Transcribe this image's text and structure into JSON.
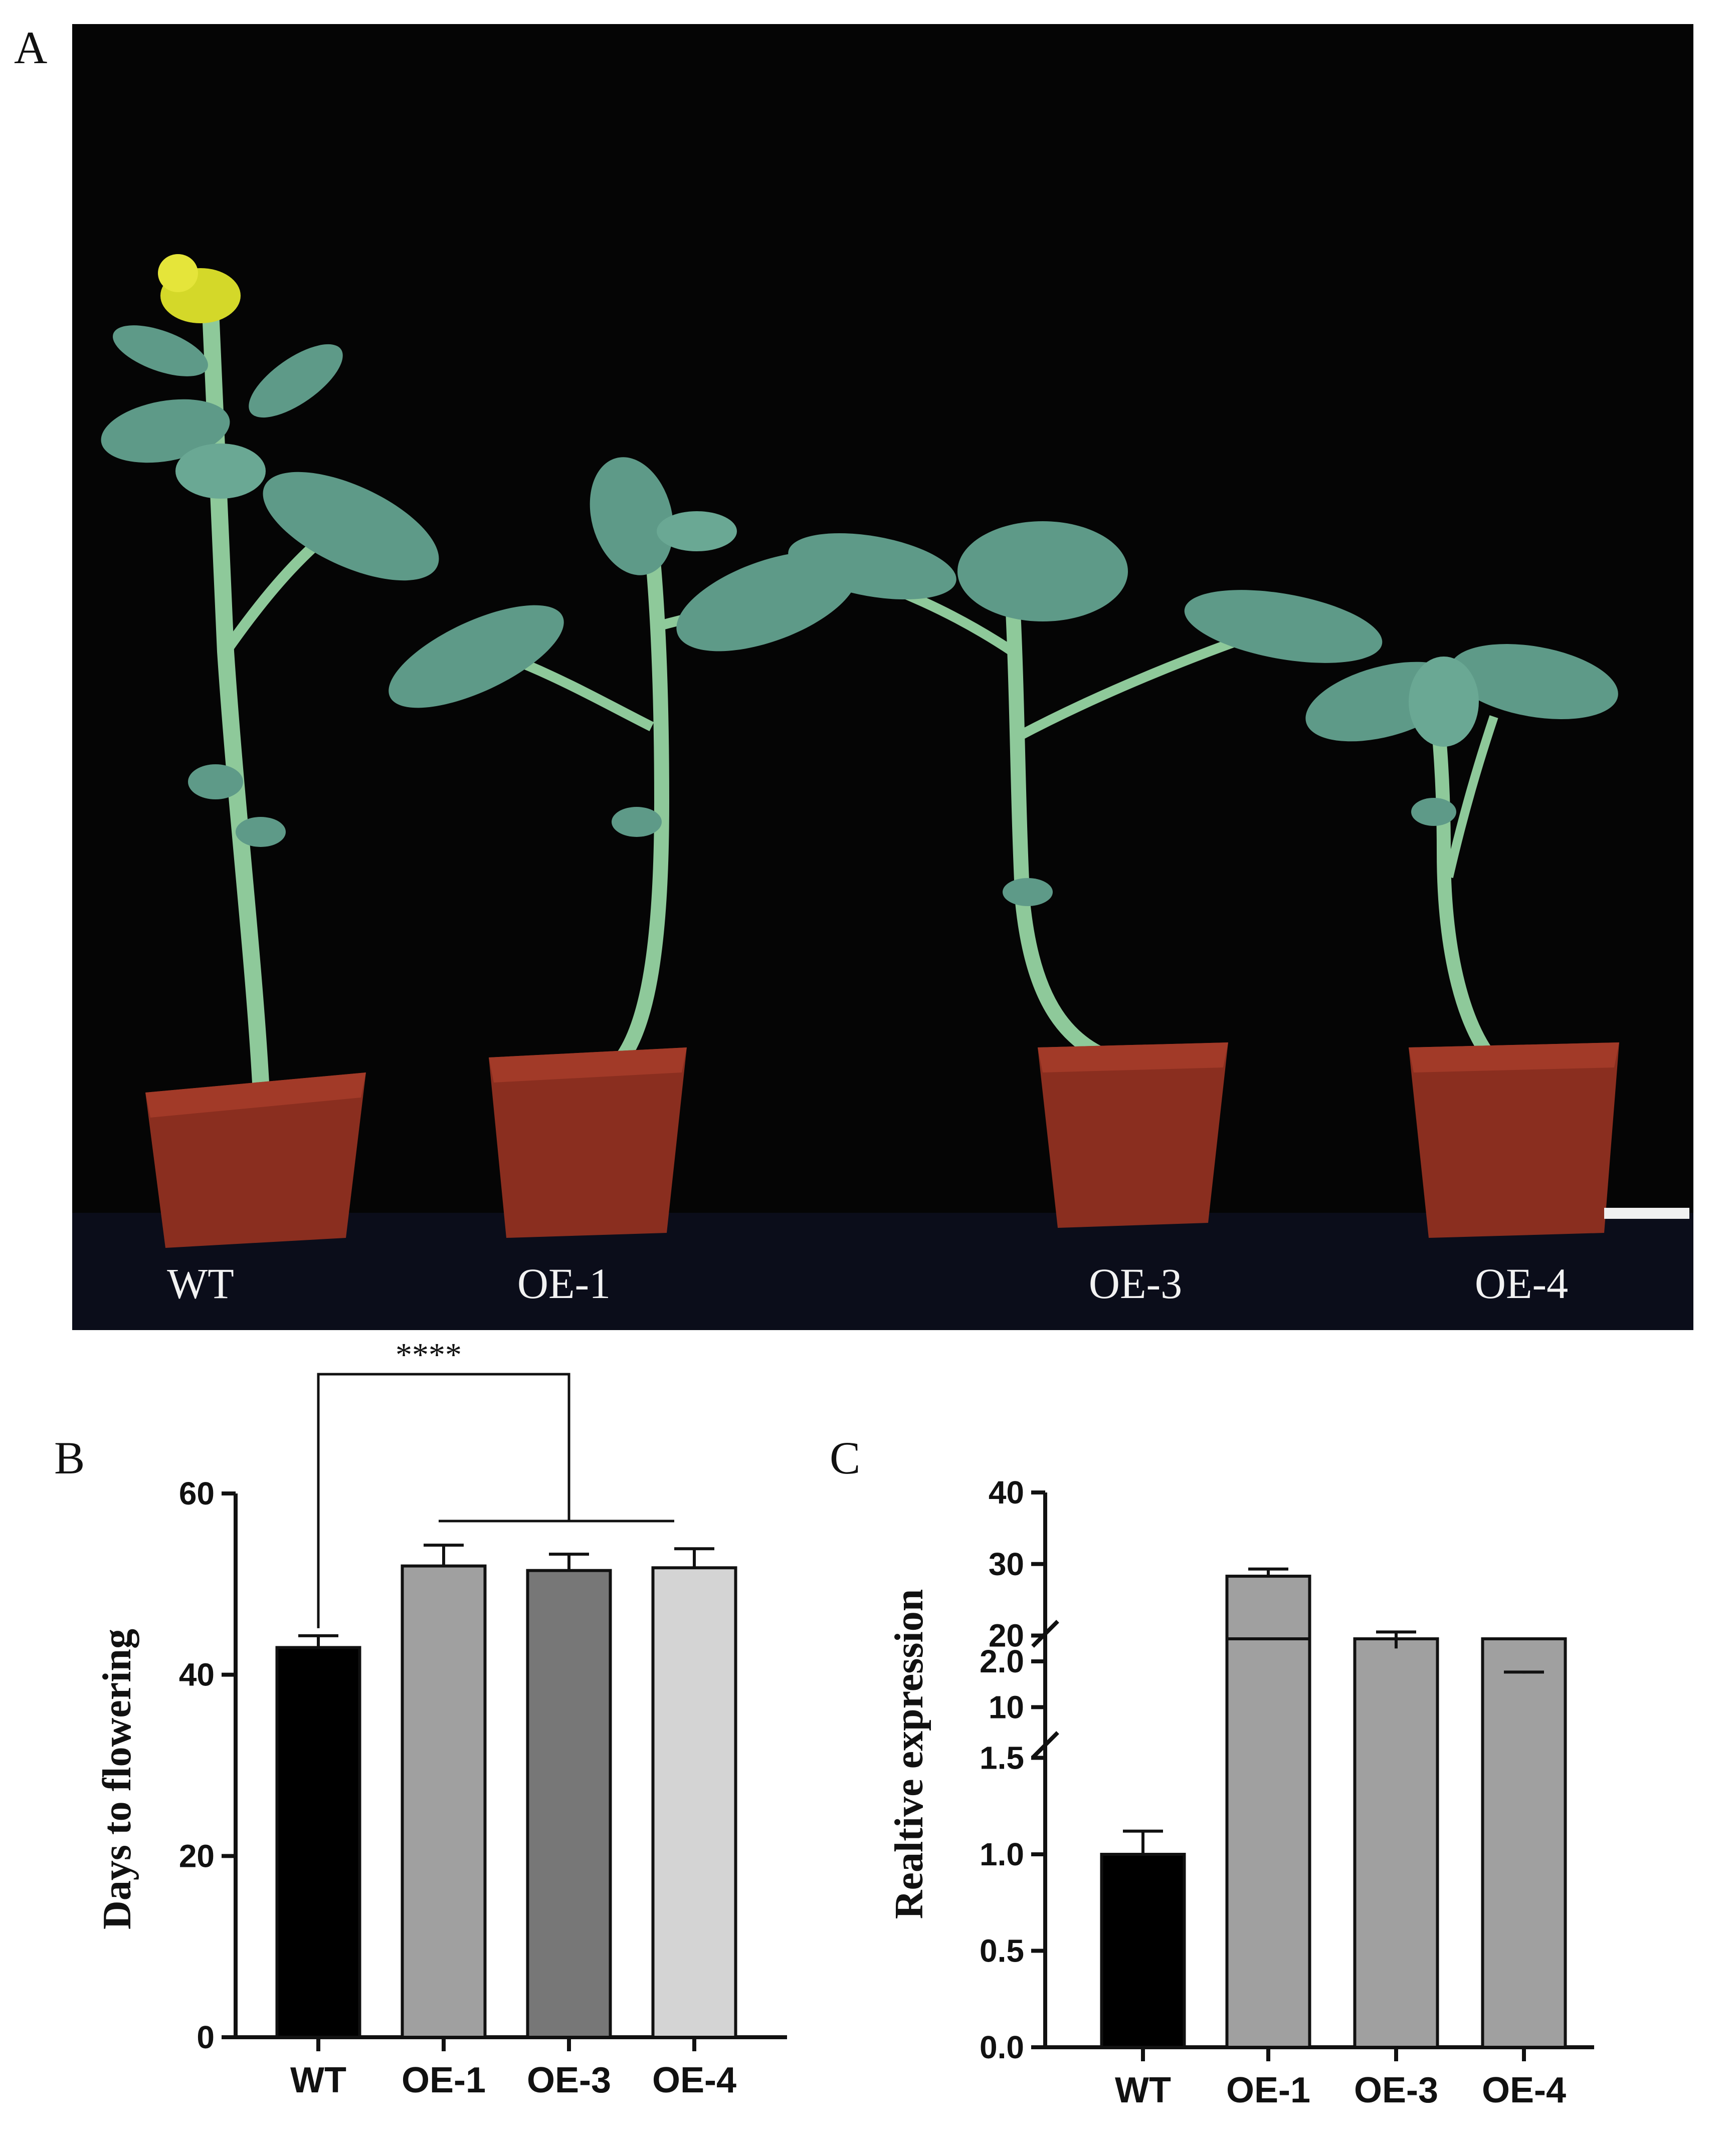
{
  "panels": {
    "a": {
      "letter": "A",
      "plant_labels": [
        "WT",
        "OE-1",
        "OE-3",
        "OE-4"
      ]
    },
    "b": {
      "letter": "B",
      "significance": "****"
    },
    "c": {
      "letter": "C"
    }
  },
  "colors": {
    "photo_background": "#050505",
    "pot": "#8a2e1f",
    "leaf": "#5e9a88",
    "stem": "#8ec99a",
    "flower": "#d4d829",
    "bar_black": "#000000",
    "bar_gray": "#a0a0a0",
    "bar_dark_gray": "#777777",
    "bar_light_gray": "#d4d4d4"
  },
  "chart_data": [
    {
      "id": "panel-b",
      "type": "bar",
      "categories": [
        "WT",
        "OE-1",
        "OE-3",
        "OE-4"
      ],
      "values": [
        43,
        52,
        51.5,
        51.8
      ],
      "errors": [
        1.3,
        2.3,
        1.8,
        2.1
      ],
      "bar_colors": [
        "#000000",
        "#a0a0a0",
        "#777777",
        "#d4d4d4"
      ],
      "ylabel": "Days to flowering",
      "ylim": [
        0,
        60
      ],
      "yticks": [
        0,
        20,
        40,
        60
      ],
      "significance": "****"
    },
    {
      "id": "panel-c",
      "type": "bar",
      "categories": [
        "WT",
        "OE-1",
        "OE-3",
        "OE-4"
      ],
      "values": [
        1.0,
        28.3,
        18.2,
        14.7
      ],
      "errors": [
        0.12,
        1.0,
        2.3,
        0.2
      ],
      "bar_colors": [
        "#000000",
        "#a0a0a0",
        "#a0a0a0",
        "#a0a0a0"
      ],
      "ylabel": "Realtive expression",
      "axis_break": true,
      "lower_ylim": [
        0,
        2.0
      ],
      "lower_yticks": [
        "0.0",
        "0.5",
        "1.0",
        "1.5",
        "2.0"
      ],
      "upper_ylim": [
        4,
        40
      ],
      "upper_yticks": [
        "10",
        "20",
        "30",
        "40"
      ]
    }
  ]
}
